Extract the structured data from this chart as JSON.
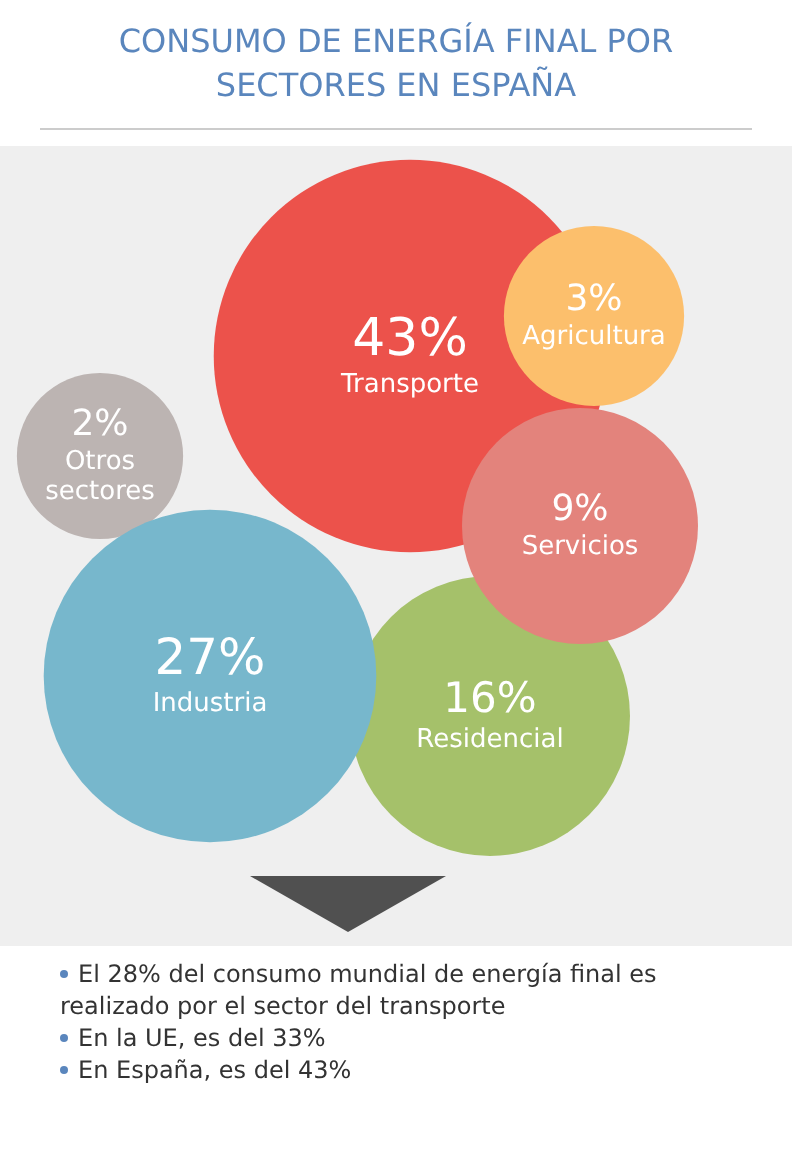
{
  "chart_data": {
    "type": "other",
    "title": "CONSUMO DE ENERGÍA FINAL POR SECTORES EN ESPAÑA",
    "categories": [
      "Transporte",
      "Residencial",
      "Servicios",
      "Agricultura",
      "Otros sectores",
      "Industria"
    ],
    "values": [
      43,
      16,
      9,
      3,
      2,
      27
    ],
    "value_labels": [
      "43%",
      "16%",
      "9%",
      "3%",
      "2%",
      "27%"
    ],
    "colors": [
      "#ec524b",
      "#a5c16a",
      "#e3837c",
      "#fcbf6c",
      "#bcb4b2",
      "#77b7cc"
    ],
    "annotations": [
      "El 28% del consumo mundial de energía final es realizado por el sector del transporte",
      "En la UE, es del 33%",
      "En España, es del 43%"
    ],
    "legend": false
  }
}
